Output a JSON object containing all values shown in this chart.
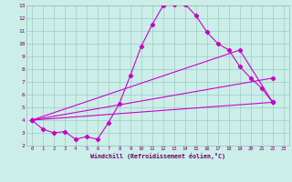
{
  "xlabel": "Windchill (Refroidissement éolien,°C)",
  "bg_color": "#cceee8",
  "line_color": "#cc00cc",
  "grid_color": "#99cccc",
  "x_min": 0,
  "x_max": 23,
  "y_min": 2,
  "y_max": 13,
  "main_x": [
    0,
    1,
    2,
    3,
    4,
    5,
    6,
    7,
    8,
    9,
    10,
    11,
    12,
    13,
    14,
    15,
    16,
    17,
    18,
    19,
    20,
    21,
    22
  ],
  "main_y": [
    4.0,
    3.3,
    3.0,
    3.1,
    2.5,
    2.7,
    2.5,
    3.8,
    5.3,
    7.5,
    9.8,
    11.5,
    13.0,
    13.1,
    13.1,
    12.2,
    10.9,
    10.0,
    9.5,
    8.2,
    7.3,
    6.5,
    5.4
  ],
  "line1_x": [
    0,
    22
  ],
  "line1_y": [
    4.0,
    5.4
  ],
  "line2_x": [
    0,
    22
  ],
  "line2_y": [
    4.0,
    7.3
  ],
  "line3_x": [
    0,
    19,
    22
  ],
  "line3_y": [
    4.0,
    9.5,
    5.4
  ]
}
